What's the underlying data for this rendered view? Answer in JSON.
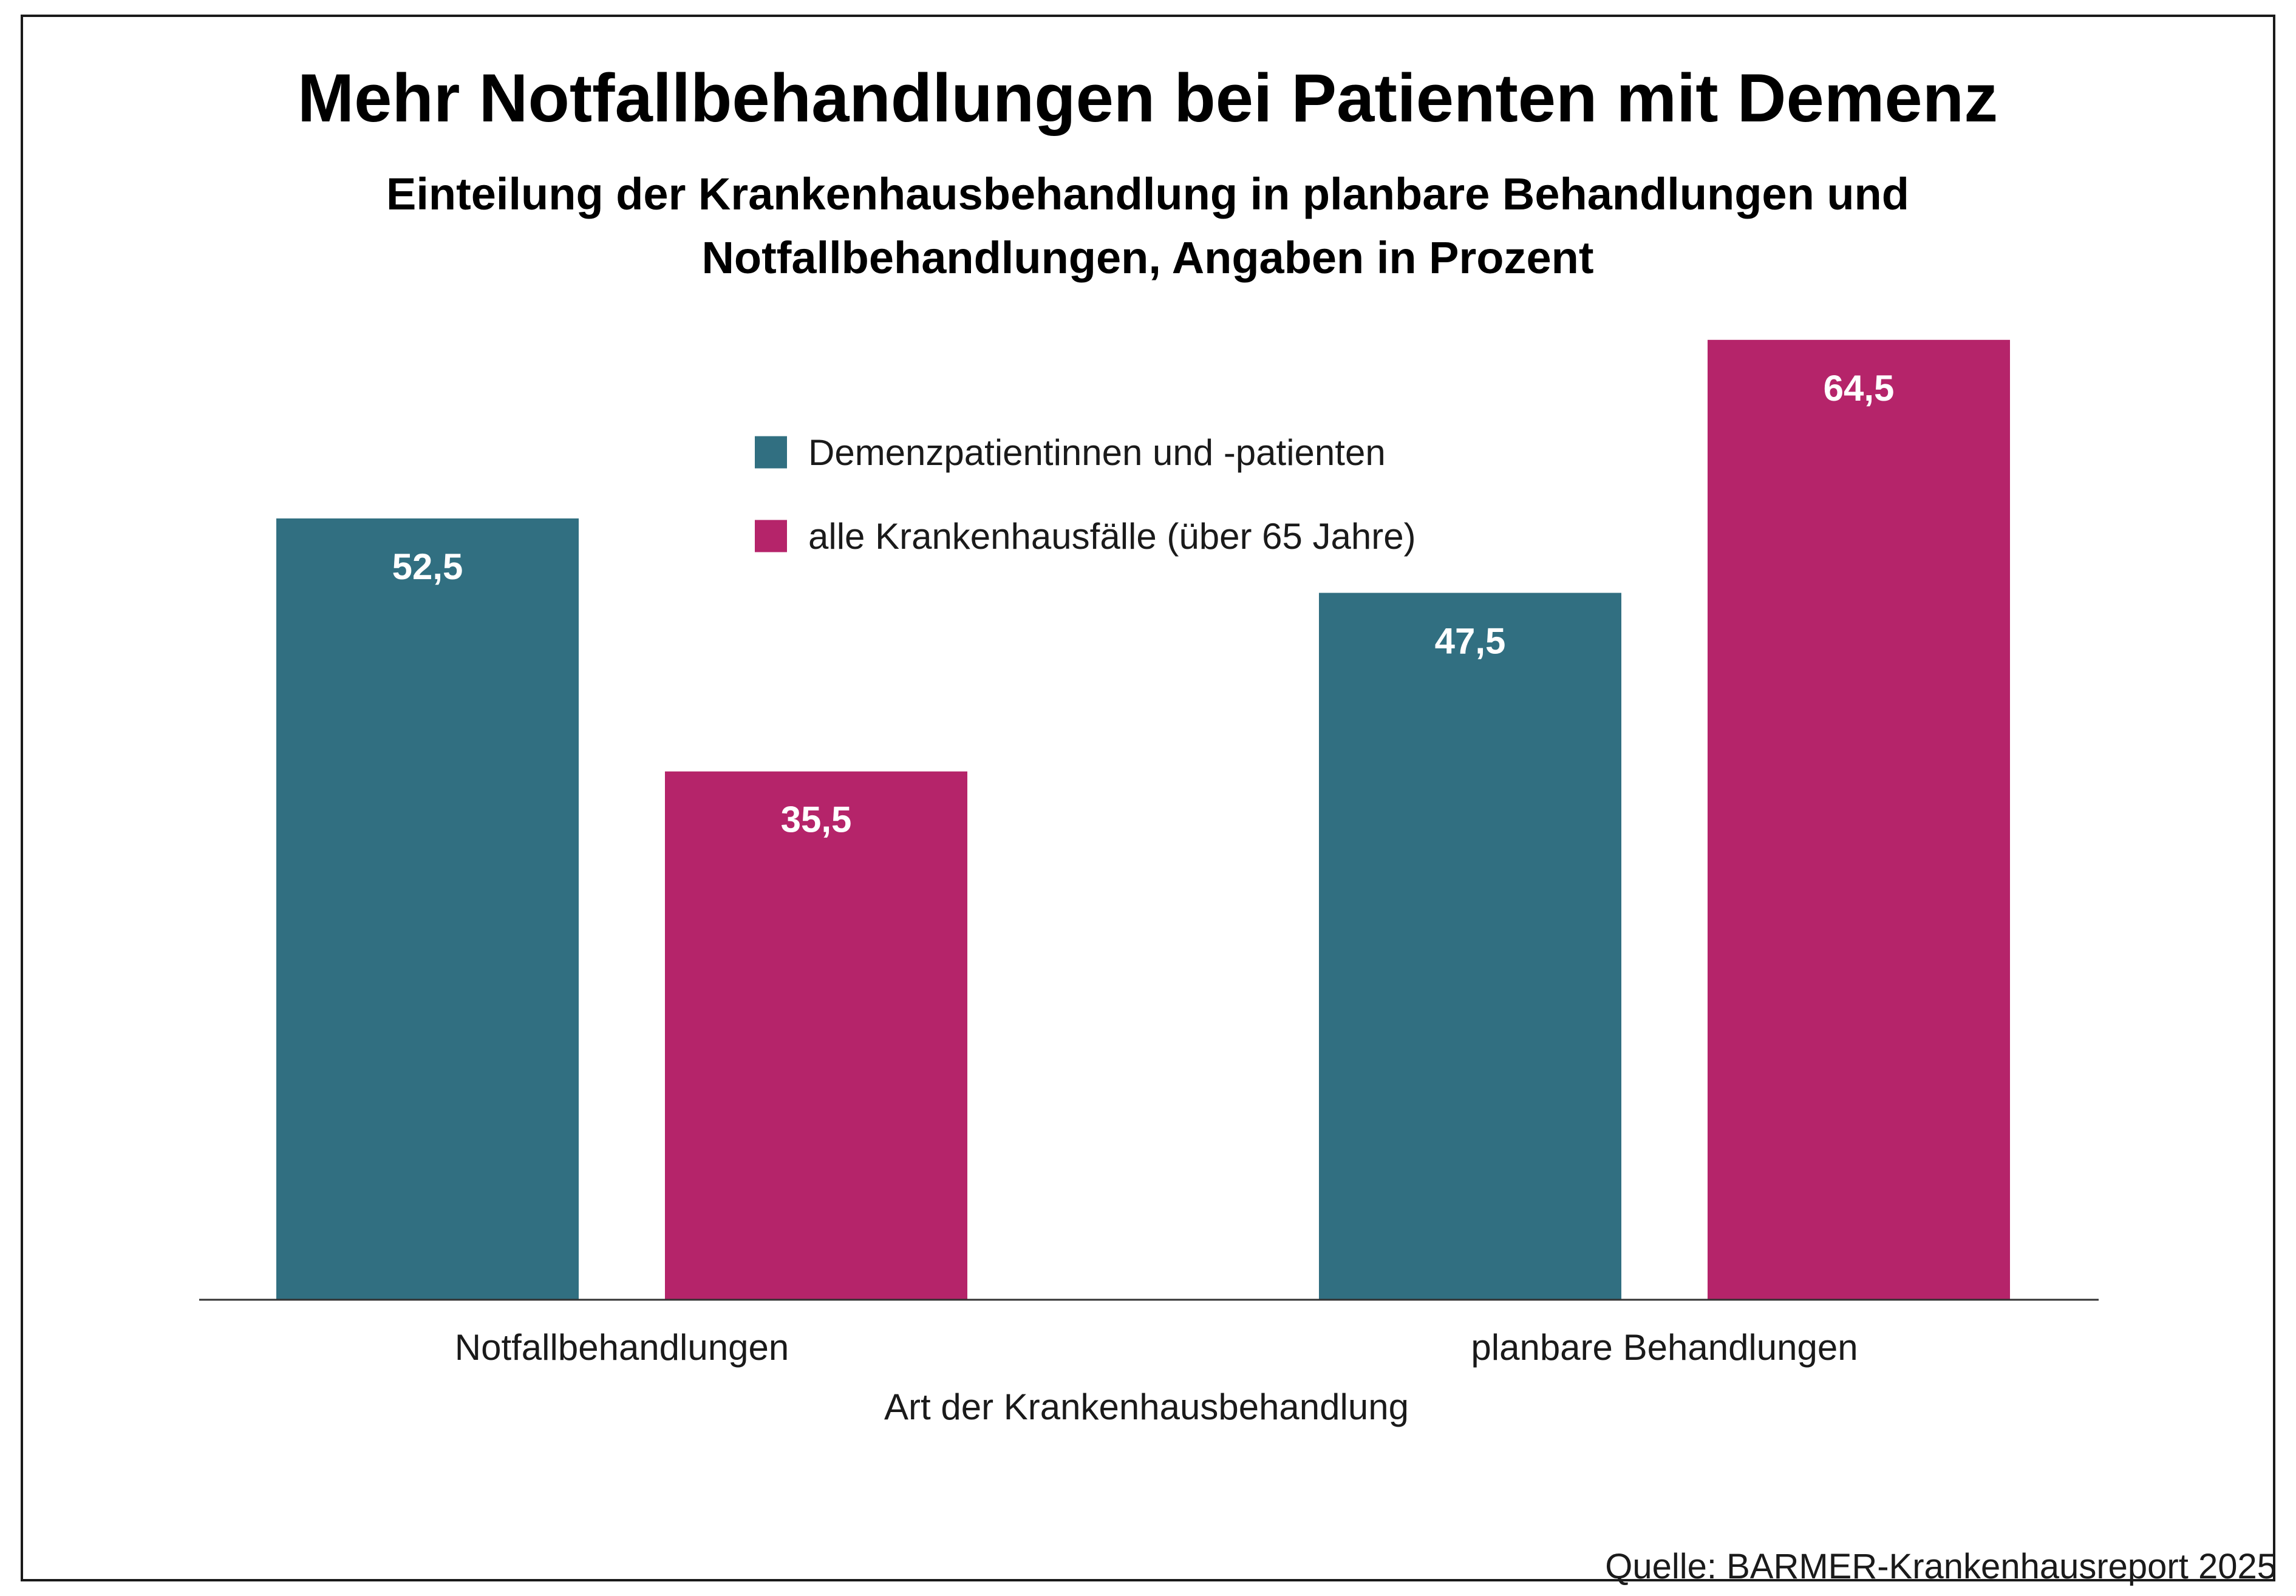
{
  "chart_data": {
    "type": "bar",
    "title": "Mehr Notfallbehandlungen bei Patienten mit Demenz",
    "subtitle_lines": [
      "Einteilung der Krankenhausbehandlung in planbare Behandlungen und",
      "Notfallbehandlungen, Angaben in Prozent"
    ],
    "categories": [
      "Notfallbehandlungen",
      "planbare Behandlungen"
    ],
    "xlabel": "Art der Krankenhausbehandlung",
    "ylabel": "",
    "ylim": [
      0,
      70
    ],
    "grid": false,
    "legend_position": "top-center",
    "series": [
      {
        "name": "Demenzpatientinnen und -patienten",
        "color": "#316f81",
        "values": [
          52.5,
          47.5
        ],
        "labels": [
          "52,5",
          "47,5"
        ]
      },
      {
        "name": "alle Krankenhausfälle (über 65 Jahre)",
        "color": "#b5246a",
        "values": [
          35.5,
          64.5
        ],
        "labels": [
          "35,5",
          "64,5"
        ]
      }
    ],
    "source": "Quelle: BARMER-Krankenhausreport 2025"
  }
}
